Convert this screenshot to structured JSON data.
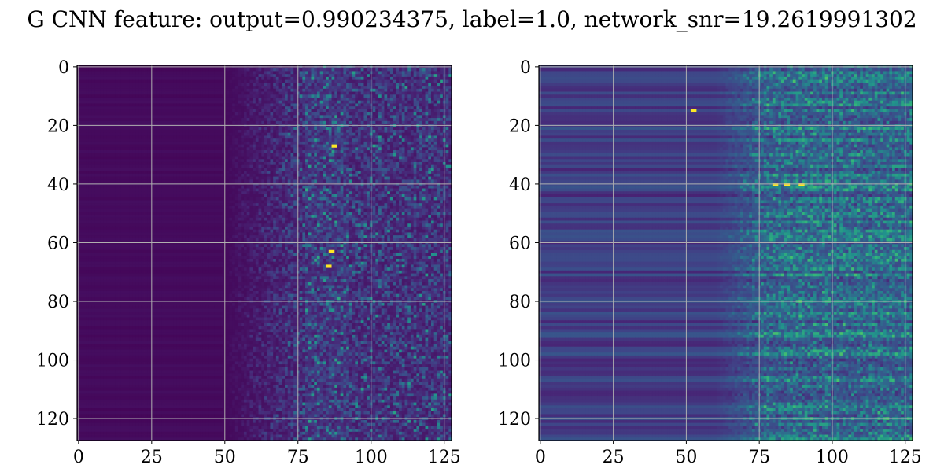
{
  "figure": {
    "title": "G CNN feature: output=0.990234375, label=1.0, network_snr=19.2619991302"
  },
  "chart_data": [
    {
      "type": "heatmap",
      "panel": "left",
      "rows": 128,
      "cols": 128,
      "xlim": [
        -0.5,
        127.5
      ],
      "ylim": [
        127.5,
        -0.5
      ],
      "xticks": [
        0,
        25,
        50,
        75,
        100,
        125
      ],
      "yticks": [
        0,
        20,
        40,
        60,
        80,
        100,
        120
      ],
      "grid": true,
      "colormap": "viridis",
      "description": "near-zero values for columns 0-50, noisy speckled activity from ~50-128 with bright spots near columns 80-90",
      "bright_spots": [
        [
          87,
          27
        ],
        [
          86,
          63
        ],
        [
          85,
          68
        ]
      ]
    },
    {
      "type": "heatmap",
      "panel": "right",
      "rows": 128,
      "cols": 128,
      "xlim": [
        -0.5,
        127.5
      ],
      "ylim": [
        127.5,
        -0.5
      ],
      "xticks": [
        0,
        25,
        50,
        75,
        100,
        125
      ],
      "yticks": [
        0,
        20,
        40,
        60,
        80,
        100,
        120
      ],
      "grid": true,
      "colormap": "viridis",
      "description": "horizontal banding across all columns, denser green/yellow activity from ~75-128",
      "bright_spots": [
        [
          80,
          40
        ],
        [
          84,
          40
        ],
        [
          89,
          40
        ],
        [
          52,
          15
        ]
      ]
    }
  ],
  "colors": {
    "grid": "#b0b0b0",
    "viridis_low": "#440154",
    "viridis_mid": "#21918c",
    "viridis_high": "#fde725"
  }
}
